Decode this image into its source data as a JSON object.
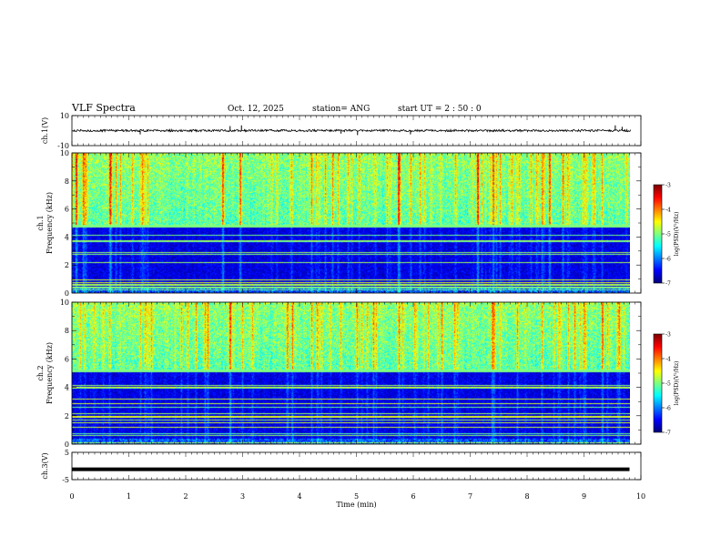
{
  "header": {
    "title": "VLF Spectra",
    "date": "Oct. 12, 2025",
    "station": "station= ANG",
    "start_ut": "start  UT =   2  : 50 : 0"
  },
  "chart_data": [
    {
      "type": "line",
      "panel": "ch1-waveform",
      "ylabel": "ch.1(V)",
      "ylim": [
        -10,
        10
      ],
      "yticks": [
        "10",
        "-10"
      ],
      "xlim": [
        0,
        10
      ],
      "baseline": 0,
      "noise_amplitude": 1.2,
      "spikes": [
        {
          "x": 1.2,
          "y": -2.5
        },
        {
          "x": 2.78,
          "y": 3
        },
        {
          "x": 2.98,
          "y": 3.5
        },
        {
          "x": 4.73,
          "y": -2
        },
        {
          "x": 5.02,
          "y": -3
        },
        {
          "x": 5.95,
          "y": -2.5
        },
        {
          "x": 9.55,
          "y": 3.5
        },
        {
          "x": 9.67,
          "y": 2.5
        }
      ]
    },
    {
      "type": "heatmap",
      "panel": "ch1-spectrogram",
      "ylabel_top": "ch.1",
      "ylabel": "Frequency (kHz)",
      "ylim": [
        0,
        10
      ],
      "yticks": [
        "0",
        "2",
        "4",
        "6",
        "8",
        "10"
      ],
      "xlim": [
        0,
        9.8
      ],
      "noise_floor_khz": 4.8,
      "colorbar": {
        "label": "log(PSD)(V²/Hz)",
        "range": [
          -7,
          -3
        ],
        "ticks": [
          "-3",
          "-4",
          "-5",
          "-6",
          "-7"
        ]
      }
    },
    {
      "type": "heatmap",
      "panel": "ch2-spectrogram",
      "ylabel_top": "ch.2",
      "ylabel": "Frequency (kHz)",
      "ylim": [
        0,
        10
      ],
      "yticks": [
        "0",
        "2",
        "4",
        "6",
        "8",
        "10"
      ],
      "xlim": [
        0,
        9.8
      ],
      "noise_floor_khz": 5.2,
      "colorbar": {
        "label": "log(PSD)(V²/Hz)",
        "range": [
          -7,
          -3
        ],
        "ticks": [
          "-3",
          "-4",
          "-5",
          "-6",
          "-7"
        ]
      }
    },
    {
      "type": "line",
      "panel": "ch3-waveform",
      "ylabel": "ch.3(V)",
      "ylim": [
        -5,
        5
      ],
      "yticks": [
        "5",
        "-5"
      ],
      "xlim": [
        0,
        9.8
      ],
      "baseline": -1.2
    }
  ],
  "xaxis": {
    "label": "Time (min)",
    "range": [
      0,
      10
    ],
    "ticks": [
      "0",
      "1",
      "2",
      "3",
      "4",
      "5",
      "6",
      "7",
      "8",
      "9",
      "10"
    ]
  },
  "colors": {
    "colormap": [
      "#00007f",
      "#0000ff",
      "#007fff",
      "#00ffff",
      "#7fff7f",
      "#ffff00",
      "#ff7f00",
      "#ff0000",
      "#7f0000"
    ]
  }
}
